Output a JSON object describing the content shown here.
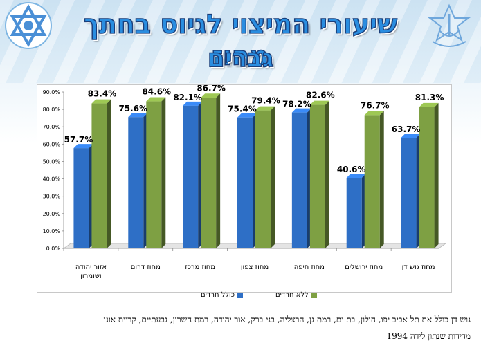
{
  "title": {
    "line1": "שיעורי המיצוי לגיוס בחתך מחוז",
    "line2": "גברים"
  },
  "colors": {
    "series1": "#2e6fc6",
    "series2": "#7ea043",
    "title_fill": "#2a8de0"
  },
  "logos": {
    "left": "star-of-david-emblem",
    "right": "idf-emblem"
  },
  "chart_data": {
    "type": "bar",
    "categories": [
      "אזור יהודה ושומרון",
      "מחוז דרום",
      "מחוז מרכז",
      "מחוז צפון",
      "מחוז חיפה",
      "מחוז ירושלים",
      "מחוז גוש דן"
    ],
    "series": [
      {
        "name": "כולל חרדים",
        "values": [
          57.7,
          75.6,
          82.1,
          75.4,
          78.2,
          40.6,
          63.7
        ],
        "color": "#2e6fc6"
      },
      {
        "name": "ללא חרדים",
        "values": [
          83.4,
          84.6,
          86.7,
          79.4,
          82.6,
          76.7,
          81.3
        ],
        "color": "#7ea043"
      }
    ],
    "data_labels": {
      "series1": [
        "57.7%",
        "75.6%",
        "82.1%",
        "75.4%",
        "78.2%",
        "40.6%",
        "63.7%"
      ],
      "series2": [
        "83.4%",
        "84.6%",
        "86.7%",
        "79.4%",
        "82.6%",
        "76.7%",
        "81.3%"
      ]
    },
    "category_lines": [
      [
        "אזור יהודה",
        "ושומרון"
      ],
      [
        "מחוז דרום"
      ],
      [
        "מחוז מרכז"
      ],
      [
        "מחוז צפון"
      ],
      [
        "מחוז חיפה"
      ],
      [
        "מחוז ירושלים"
      ],
      [
        "מחוז גוש דן"
      ]
    ],
    "y_ticks": [
      "0.0%",
      "10.0%",
      "20.0%",
      "30.0%",
      "40.0%",
      "50.0%",
      "60.0%",
      "70.0%",
      "80.0%",
      "90.0%"
    ],
    "ylim": [
      0,
      90
    ],
    "grid": false,
    "legend_position": "bottom",
    "style": "3d-column"
  },
  "legend": {
    "series1": "כולל חרדים",
    "series2": "ללא חרדים"
  },
  "footnote": {
    "line1": "גוש דן כולל את תל-אביב יפו, חולון, בת ים, רמת גן, הרצליה, בני ברק, אור יהודה, רמת השרון, גבעתיים, קריית אונו",
    "line2": "מדידות שנתון לידה 1994"
  }
}
